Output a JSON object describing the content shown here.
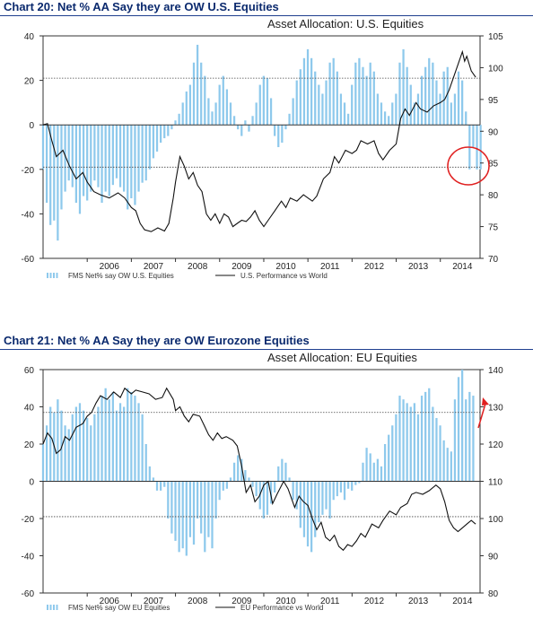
{
  "panels": [
    {
      "heading": "Chart 20: Net % AA Say they are OW U.S. Equities",
      "chart_title": "Asset Allocation: U.S. Equities",
      "legend": [
        "FMS Net% say OW U.S. Equities",
        "U.S. Performance vs World"
      ]
    },
    {
      "heading": "Chart 21: Net % AA Say they are OW Eurozone Equities",
      "chart_title": "Asset Allocation: EU Equities",
      "legend": [
        "FMS Net% say OW EU Equities",
        "EU Performance vs World"
      ]
    }
  ],
  "colors": {
    "bars": "#8ec9ec",
    "line": "#111111",
    "heading": "#0b2a6e",
    "rule": "#1f3f8f",
    "circle": "#e02020",
    "arrow": "#e02020"
  },
  "chart_data": [
    {
      "type": "bar",
      "title": "Asset Allocation: U.S. Equities",
      "xlabel": "",
      "x_ticks": [
        "2006",
        "2007",
        "2008",
        "2009",
        "2010",
        "2011",
        "2012",
        "2013",
        "2014"
      ],
      "x_range": [
        2005.0,
        2014.9
      ],
      "ylim_left": [
        -60,
        40
      ],
      "yticks_left": [
        40,
        20,
        0,
        -20,
        -40,
        -60
      ],
      "ylim_right": [
        70,
        105
      ],
      "yticks_right": [
        105,
        100,
        95,
        90,
        85,
        80,
        75,
        70
      ],
      "reference_lines_left": [
        21,
        -19
      ],
      "annotation": "circle",
      "bars": {
        "name": "FMS Net% say OW U.S. Equities",
        "start": 2005.0,
        "step": 0.0833,
        "axis": "left",
        "values": [
          -20,
          -35,
          -45,
          -43,
          -52,
          -38,
          -30,
          -25,
          -28,
          -35,
          -40,
          -32,
          -34,
          -30,
          -25,
          -28,
          -35,
          -30,
          -32,
          -27,
          -24,
          -28,
          -30,
          -38,
          -33,
          -36,
          -30,
          -26,
          -25,
          -20,
          -15,
          -12,
          -8,
          -6,
          -5,
          -2,
          2,
          5,
          10,
          15,
          18,
          28,
          36,
          28,
          22,
          12,
          6,
          10,
          18,
          22,
          16,
          10,
          4,
          -2,
          -5,
          2,
          -3,
          4,
          10,
          18,
          22,
          21,
          12,
          -5,
          -10,
          -8,
          -2,
          5,
          12,
          20,
          25,
          30,
          34,
          30,
          24,
          18,
          14,
          20,
          28,
          30,
          24,
          14,
          10,
          5,
          18,
          28,
          30,
          26,
          22,
          28,
          24,
          14,
          10,
          6,
          4,
          10,
          14,
          28,
          34,
          26,
          18,
          10,
          14,
          22,
          26,
          30,
          28,
          20,
          14,
          24,
          26,
          10,
          14,
          24,
          20,
          6,
          -20,
          -10,
          -20,
          -20
        ]
      },
      "line": {
        "name": "U.S. Performance vs World",
        "axis": "right",
        "points": [
          [
            2005.0,
            91.0
          ],
          [
            2005.1,
            91.2
          ],
          [
            2005.2,
            88.5
          ],
          [
            2005.3,
            86.0
          ],
          [
            2005.45,
            87.0
          ],
          [
            2005.6,
            84.5
          ],
          [
            2005.75,
            82.5
          ],
          [
            2005.9,
            83.5
          ],
          [
            2006.0,
            82.0
          ],
          [
            2006.15,
            80.5
          ],
          [
            2006.3,
            80.0
          ],
          [
            2006.5,
            79.5
          ],
          [
            2006.7,
            80.3
          ],
          [
            2006.85,
            79.5
          ],
          [
            2007.0,
            78.0
          ],
          [
            2007.1,
            77.5
          ],
          [
            2007.2,
            75.5
          ],
          [
            2007.3,
            74.5
          ],
          [
            2007.45,
            74.2
          ],
          [
            2007.6,
            74.8
          ],
          [
            2007.75,
            74.3
          ],
          [
            2007.85,
            75.5
          ],
          [
            2007.95,
            79.5
          ],
          [
            2008.0,
            82.0
          ],
          [
            2008.1,
            86.0
          ],
          [
            2008.2,
            84.5
          ],
          [
            2008.3,
            82.5
          ],
          [
            2008.4,
            83.5
          ],
          [
            2008.5,
            81.5
          ],
          [
            2008.6,
            80.5
          ],
          [
            2008.7,
            77.0
          ],
          [
            2008.8,
            76.0
          ],
          [
            2008.9,
            77.0
          ],
          [
            2009.0,
            75.5
          ],
          [
            2009.1,
            77.0
          ],
          [
            2009.2,
            76.5
          ],
          [
            2009.3,
            75.0
          ],
          [
            2009.4,
            75.5
          ],
          [
            2009.5,
            76.0
          ],
          [
            2009.6,
            75.8
          ],
          [
            2009.7,
            76.5
          ],
          [
            2009.8,
            77.5
          ],
          [
            2009.9,
            76.0
          ],
          [
            2010.0,
            75.0
          ],
          [
            2010.1,
            76.0
          ],
          [
            2010.25,
            77.5
          ],
          [
            2010.4,
            79.0
          ],
          [
            2010.5,
            78.0
          ],
          [
            2010.6,
            79.5
          ],
          [
            2010.75,
            79.0
          ],
          [
            2010.9,
            80.0
          ],
          [
            2011.0,
            79.5
          ],
          [
            2011.1,
            79.0
          ],
          [
            2011.2,
            79.8
          ],
          [
            2011.35,
            82.5
          ],
          [
            2011.5,
            83.5
          ],
          [
            2011.6,
            86.0
          ],
          [
            2011.7,
            85.0
          ],
          [
            2011.85,
            87.0
          ],
          [
            2012.0,
            86.5
          ],
          [
            2012.1,
            87.0
          ],
          [
            2012.2,
            88.5
          ],
          [
            2012.35,
            88.0
          ],
          [
            2012.5,
            88.5
          ],
          [
            2012.6,
            86.5
          ],
          [
            2012.7,
            85.5
          ],
          [
            2012.85,
            87.0
          ],
          [
            2013.0,
            88.0
          ],
          [
            2013.1,
            92.0
          ],
          [
            2013.2,
            93.5
          ],
          [
            2013.3,
            92.5
          ],
          [
            2013.45,
            94.5
          ],
          [
            2013.55,
            93.5
          ],
          [
            2013.7,
            93.0
          ],
          [
            2013.85,
            94.0
          ],
          [
            2014.0,
            94.5
          ],
          [
            2014.1,
            95.0
          ],
          [
            2014.2,
            96.5
          ],
          [
            2014.3,
            98.5
          ],
          [
            2014.4,
            100.5
          ],
          [
            2014.5,
            102.5
          ],
          [
            2014.55,
            101.0
          ],
          [
            2014.6,
            101.8
          ],
          [
            2014.7,
            99.5
          ],
          [
            2014.8,
            98.5
          ]
        ]
      }
    },
    {
      "type": "bar",
      "title": "Asset Allocation: EU Equities",
      "xlabel": "",
      "x_ticks": [
        "2006",
        "2007",
        "2008",
        "2009",
        "2010",
        "2011",
        "2012",
        "2013",
        "2014"
      ],
      "x_range": [
        2005.0,
        2014.9
      ],
      "ylim_left": [
        -60,
        60
      ],
      "yticks_left": [
        60,
        40,
        20,
        0,
        -20,
        -40,
        -60
      ],
      "ylim_right": [
        80,
        140
      ],
      "yticks_right": [
        140,
        130,
        120,
        110,
        100,
        90,
        80
      ],
      "reference_lines_left": [
        37,
        -19
      ],
      "annotation": "arrow",
      "bars": {
        "name": "FMS Net% say OW EU Equities",
        "start": 2005.0,
        "step": 0.0833,
        "axis": "left",
        "values": [
          20,
          30,
          40,
          37,
          44,
          38,
          30,
          28,
          36,
          40,
          42,
          38,
          34,
          30,
          36,
          40,
          46,
          50,
          44,
          48,
          38,
          42,
          40,
          50,
          48,
          46,
          42,
          36,
          20,
          8,
          2,
          -5,
          -5,
          -3,
          -20,
          -28,
          -32,
          -38,
          -36,
          -40,
          -30,
          -34,
          -20,
          -28,
          -38,
          -30,
          -36,
          -20,
          -10,
          -5,
          -4,
          2,
          10,
          14,
          12,
          6,
          2,
          -3,
          -8,
          -15,
          -20,
          -18,
          -12,
          -6,
          8,
          12,
          10,
          2,
          -10,
          -15,
          -25,
          -30,
          -35,
          -38,
          -30,
          -22,
          -18,
          -15,
          -20,
          -10,
          -8,
          -6,
          -10,
          -4,
          -5,
          -2,
          -1,
          10,
          18,
          15,
          10,
          12,
          8,
          20,
          25,
          30,
          36,
          46,
          44,
          42,
          40,
          42,
          36,
          46,
          48,
          50,
          40,
          34,
          30,
          22,
          18,
          16,
          44,
          56,
          60,
          44,
          48,
          46
        ]
      },
      "line": {
        "name": "EU Performance vs World",
        "axis": "right",
        "points": [
          [
            2005.0,
            120.0
          ],
          [
            2005.1,
            123.0
          ],
          [
            2005.2,
            121.5
          ],
          [
            2005.3,
            117.5
          ],
          [
            2005.4,
            118.5
          ],
          [
            2005.5,
            122.0
          ],
          [
            2005.6,
            121.0
          ],
          [
            2005.75,
            124.5
          ],
          [
            2005.9,
            125.5
          ],
          [
            2006.0,
            127.5
          ],
          [
            2006.1,
            128.5
          ],
          [
            2006.2,
            131.0
          ],
          [
            2006.3,
            133.0
          ],
          [
            2006.45,
            132.0
          ],
          [
            2006.6,
            134.0
          ],
          [
            2006.75,
            132.5
          ],
          [
            2006.85,
            135.0
          ],
          [
            2007.0,
            133.5
          ],
          [
            2007.1,
            134.5
          ],
          [
            2007.25,
            134.0
          ],
          [
            2007.4,
            133.5
          ],
          [
            2007.55,
            132.0
          ],
          [
            2007.7,
            132.5
          ],
          [
            2007.8,
            135.0
          ],
          [
            2007.95,
            132.0
          ],
          [
            2008.0,
            129.0
          ],
          [
            2008.1,
            130.0
          ],
          [
            2008.2,
            127.5
          ],
          [
            2008.3,
            126.0
          ],
          [
            2008.4,
            128.0
          ],
          [
            2008.55,
            127.5
          ],
          [
            2008.65,
            125.0
          ],
          [
            2008.75,
            122.5
          ],
          [
            2008.85,
            121.0
          ],
          [
            2008.95,
            123.0
          ],
          [
            2009.05,
            121.5
          ],
          [
            2009.15,
            122.0
          ],
          [
            2009.3,
            121.0
          ],
          [
            2009.4,
            119.5
          ],
          [
            2009.5,
            114.0
          ],
          [
            2009.6,
            107.0
          ],
          [
            2009.7,
            109.0
          ],
          [
            2009.8,
            104.5
          ],
          [
            2009.9,
            106.0
          ],
          [
            2010.0,
            109.0
          ],
          [
            2010.1,
            110.0
          ],
          [
            2010.2,
            104.0
          ],
          [
            2010.3,
            106.5
          ],
          [
            2010.45,
            110.0
          ],
          [
            2010.55,
            108.0
          ],
          [
            2010.7,
            103.0
          ],
          [
            2010.8,
            106.0
          ],
          [
            2010.9,
            104.5
          ],
          [
            2011.0,
            103.5
          ],
          [
            2011.1,
            100.0
          ],
          [
            2011.2,
            97.0
          ],
          [
            2011.3,
            99.0
          ],
          [
            2011.4,
            95.0
          ],
          [
            2011.5,
            94.0
          ],
          [
            2011.6,
            95.5
          ],
          [
            2011.7,
            92.5
          ],
          [
            2011.8,
            91.5
          ],
          [
            2011.9,
            93.0
          ],
          [
            2012.0,
            92.5
          ],
          [
            2012.1,
            94.0
          ],
          [
            2012.2,
            96.0
          ],
          [
            2012.3,
            95.0
          ],
          [
            2012.45,
            98.5
          ],
          [
            2012.6,
            97.5
          ],
          [
            2012.7,
            99.5
          ],
          [
            2012.85,
            102.0
          ],
          [
            2013.0,
            101.0
          ],
          [
            2013.1,
            103.0
          ],
          [
            2013.25,
            104.0
          ],
          [
            2013.35,
            106.5
          ],
          [
            2013.45,
            107.0
          ],
          [
            2013.6,
            106.5
          ],
          [
            2013.75,
            107.5
          ],
          [
            2013.9,
            109.0
          ],
          [
            2014.0,
            108.0
          ],
          [
            2014.1,
            104.5
          ],
          [
            2014.2,
            99.5
          ],
          [
            2014.3,
            97.5
          ],
          [
            2014.4,
            96.5
          ],
          [
            2014.5,
            97.5
          ],
          [
            2014.6,
            98.5
          ],
          [
            2014.7,
            99.5
          ],
          [
            2014.8,
            98.5
          ]
        ]
      }
    }
  ]
}
